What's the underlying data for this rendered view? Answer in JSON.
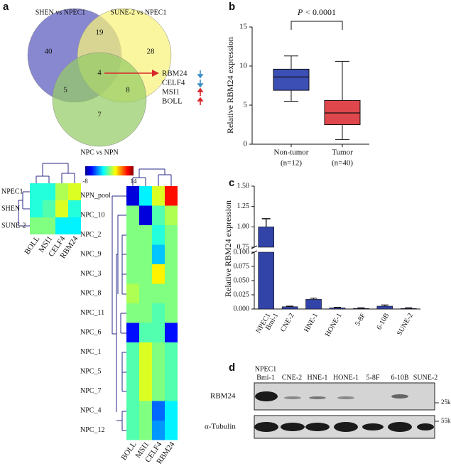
{
  "panels": {
    "a": {
      "label": "a",
      "venn": {
        "sets": [
          {
            "name": "SHEN vs NPEC1",
            "color": "#5a5abf"
          },
          {
            "name": "SUNE-2 vs NPEC1",
            "color": "#f6f27a"
          },
          {
            "name": "NPC vs NPN",
            "color": "#95cc66"
          }
        ],
        "counts": {
          "only_1": 40,
          "set_1_2": 19,
          "only_2": 28,
          "all": 4,
          "set_1_3": 5,
          "set_2_3": 8,
          "only_3": 7
        }
      },
      "arrow_color": "#d8262a",
      "genes": [
        {
          "name": "RBM24",
          "direction": "down",
          "color": "#3a8fc4"
        },
        {
          "name": "CELF4",
          "direction": "down",
          "color": "#3a8fc4"
        },
        {
          "name": "MSI1",
          "direction": "up",
          "color": "#d8262a"
        },
        {
          "name": "BOLL",
          "direction": "up",
          "color": "#d8262a"
        }
      ],
      "colorbar": {
        "range": [
          -8,
          14
        ],
        "ticks": [
          -8,
          14
        ]
      },
      "heatmap_small": {
        "rows": [
          "NPEC1",
          "SHEN",
          "SUNE-2"
        ],
        "columns": [
          "BOLL",
          "MSI1",
          "CELF4",
          "RBM24"
        ],
        "values": [
          [
            1,
            1,
            4,
            5
          ],
          [
            1,
            2,
            5,
            1
          ],
          [
            3,
            3,
            0,
            0
          ]
        ]
      },
      "heatmap_large": {
        "rows": [
          "NPN_pool",
          "NPC_10",
          "NPC_2",
          "NPC_9",
          "NPC_3",
          "NPC_8",
          "NPC_11",
          "NPC_6",
          "NPC_1",
          "NPC_5",
          "NPC_7",
          "NPC_4",
          "NPC_12"
        ],
        "columns": [
          "BOLL",
          "MSI1",
          "CELF4",
          "RBM24"
        ],
        "values": [
          [
            -6,
            0,
            5,
            11
          ],
          [
            3,
            -6,
            2,
            4
          ],
          [
            3,
            3,
            1,
            3
          ],
          [
            3,
            3,
            -1,
            3
          ],
          [
            3,
            3,
            6,
            3
          ],
          [
            4,
            3,
            3,
            3
          ],
          [
            3,
            3,
            2,
            3
          ],
          [
            -5,
            2,
            2,
            -5
          ],
          [
            2,
            5,
            3,
            2
          ],
          [
            2,
            5,
            3,
            2
          ],
          [
            2,
            5,
            3,
            2
          ],
          [
            2,
            3,
            -3,
            0
          ],
          [
            2,
            3,
            -2,
            0
          ]
        ]
      }
    },
    "b": {
      "label": "b",
      "type": "box",
      "ylabel": "Relative RBM24 expression",
      "ylim": [
        0,
        15
      ],
      "yticks": [
        0,
        5,
        10,
        15
      ],
      "categories": [
        "Non-tumor",
        "Tumor"
      ],
      "n_labels": [
        "(n=12)",
        "(n=40)"
      ],
      "annotation": {
        "italic": "P",
        "text": "< 0.0001"
      },
      "boxes": [
        {
          "color": "#3b4fb5",
          "whisker_low": 5.5,
          "q1": 6.9,
          "median": 8.6,
          "q3": 9.6,
          "whisker_high": 11.3
        },
        {
          "color": "#e0474c",
          "whisker_low": 0.6,
          "q1": 2.5,
          "median": 4.0,
          "q3": 5.6,
          "whisker_high": 10.6
        }
      ]
    },
    "c": {
      "label": "c",
      "type": "bar",
      "ylabel": "Relative RBM24 expression",
      "color": "#3344a8",
      "categories": [
        [
          "NPEC1",
          "Bmi-1"
        ],
        [
          "CNE-2"
        ],
        [
          "HNE-1"
        ],
        [
          "HONE-1"
        ],
        [
          "5-8F"
        ],
        [
          "6-10B"
        ],
        [
          "SUNE-2"
        ]
      ],
      "values": [
        1.0,
        0.004,
        0.017,
        0.002,
        0.001,
        0.005,
        0.001
      ],
      "errors": [
        0.1,
        0.001,
        0.002,
        0.001,
        0.001,
        0.002,
        0.001
      ],
      "ylim_lower": [
        0,
        0.1
      ],
      "yticks_lower": [
        {
          "value": 0,
          "label": "0.000"
        },
        0.025,
        {
          "value": 0.05,
          "label": "0.050"
        },
        0.075,
        {
          "value": 0.1,
          "label": "0.100"
        }
      ],
      "ylim_upper": [
        0.75,
        1.5
      ],
      "yticks_upper": [
        0.75,
        {
          "value": 1,
          "label": "1.00"
        },
        1.25,
        {
          "value": 1.5,
          "label": "1.50"
        }
      ]
    },
    "d": {
      "label": "d",
      "lanes": [
        [
          "NPEC1",
          "Bmi-1"
        ],
        [
          "CNE-2"
        ],
        [
          "HNE-1"
        ],
        [
          "HONE-1"
        ],
        [
          "5-8F"
        ],
        [
          "6-10B"
        ],
        [
          "SUNE-2"
        ]
      ],
      "rows": [
        "RBM24",
        "α-Tubulin"
      ],
      "markers": [
        "25k",
        "55k"
      ]
    }
  }
}
